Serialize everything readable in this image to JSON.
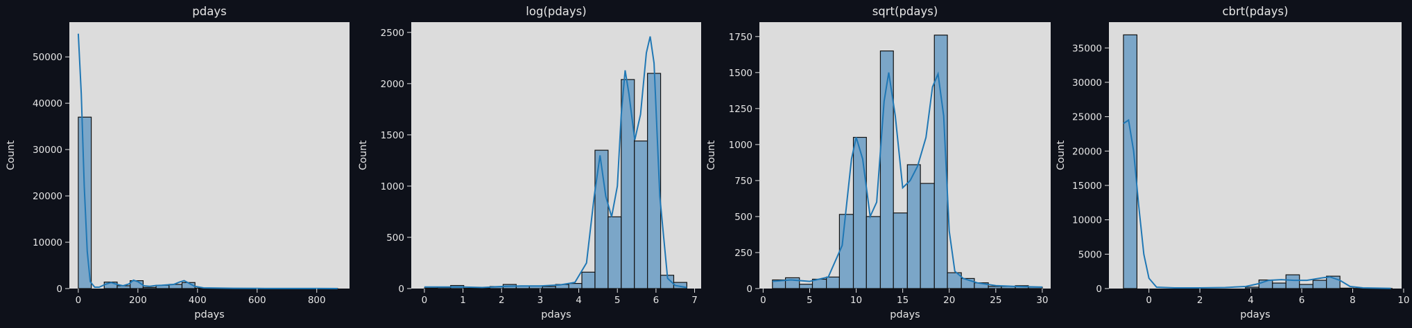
{
  "colors": {
    "background": "#0e111a",
    "axes_face": "#dcdcdc",
    "text": "#e6e6e6",
    "bar_fill": "#7ba6c8",
    "bar_edge": "#111111",
    "kde_line": "#1f77b4"
  },
  "chart_data": [
    {
      "type": "bar",
      "title": "pdays",
      "xlabel": "pdays",
      "ylabel": "Count",
      "xlim": [
        -30,
        910
      ],
      "ylim": [
        0,
        57500
      ],
      "xticks": [
        0,
        200,
        400,
        600,
        800
      ],
      "yticks": [
        0,
        10000,
        20000,
        30000,
        40000,
        50000
      ],
      "bins": [
        {
          "x0": 0,
          "x1": 43.5,
          "count": 37000
        },
        {
          "x0": 87,
          "x1": 130.5,
          "count": 1400
        },
        {
          "x0": 130.5,
          "x1": 174,
          "count": 600
        },
        {
          "x0": 174,
          "x1": 217.5,
          "count": 1700
        },
        {
          "x0": 217.5,
          "x1": 261,
          "count": 250
        },
        {
          "x0": 261,
          "x1": 304.5,
          "count": 700
        },
        {
          "x0": 304.5,
          "x1": 348,
          "count": 900
        },
        {
          "x0": 348,
          "x1": 391.5,
          "count": 1300
        },
        {
          "x0": 391.5,
          "x1": 435,
          "count": 100
        },
        {
          "x0": 435,
          "x1": 478.5,
          "count": 20
        },
        {
          "x0": 478.5,
          "x1": 522,
          "count": 30
        },
        {
          "x0": 522,
          "x1": 565.5,
          "count": 40
        },
        {
          "x0": 565.5,
          "x1": 609,
          "count": 20
        },
        {
          "x0": 609,
          "x1": 652.5,
          "count": 10
        },
        {
          "x0": 652.5,
          "x1": 696,
          "count": 10
        },
        {
          "x0": 696,
          "x1": 739.5,
          "count": 10
        },
        {
          "x0": 739.5,
          "x1": 783,
          "count": 10
        },
        {
          "x0": 783,
          "x1": 826.5,
          "count": 10
        },
        {
          "x0": 826.5,
          "x1": 870,
          "count": 10
        }
      ],
      "kde": [
        [
          0,
          55000
        ],
        [
          10,
          42000
        ],
        [
          20,
          22000
        ],
        [
          30,
          8000
        ],
        [
          40,
          1500
        ],
        [
          55,
          300
        ],
        [
          70,
          300
        ],
        [
          90,
          900
        ],
        [
          110,
          1300
        ],
        [
          130,
          900
        ],
        [
          150,
          600
        ],
        [
          170,
          1000
        ],
        [
          185,
          1800
        ],
        [
          200,
          1500
        ],
        [
          220,
          600
        ],
        [
          240,
          500
        ],
        [
          260,
          650
        ],
        [
          280,
          700
        ],
        [
          300,
          800
        ],
        [
          320,
          900
        ],
        [
          340,
          1400
        ],
        [
          355,
          1700
        ],
        [
          370,
          1200
        ],
        [
          390,
          500
        ],
        [
          420,
          150
        ],
        [
          460,
          100
        ],
        [
          520,
          60
        ],
        [
          600,
          30
        ],
        [
          700,
          15
        ],
        [
          800,
          10
        ],
        [
          870,
          5
        ]
      ]
    },
    {
      "type": "bar",
      "title": "log(pdays)",
      "xlabel": "pdays",
      "ylabel": "Count",
      "xlim": [
        -0.34,
        7.17
      ],
      "ylim": [
        0,
        2600
      ],
      "xticks": [
        0,
        1,
        2,
        3,
        4,
        5,
        6,
        7
      ],
      "yticks": [
        0,
        500,
        1000,
        1500,
        2000,
        2500
      ],
      "bins": [
        {
          "x0": 0,
          "x1": 0.34,
          "count": 5
        },
        {
          "x0": 0.34,
          "x1": 0.68,
          "count": 10
        },
        {
          "x0": 0.68,
          "x1": 1.02,
          "count": 30
        },
        {
          "x0": 1.02,
          "x1": 1.36,
          "count": 3
        },
        {
          "x0": 1.36,
          "x1": 1.7,
          "count": 5
        },
        {
          "x0": 1.7,
          "x1": 2.04,
          "count": 20
        },
        {
          "x0": 2.04,
          "x1": 2.38,
          "count": 40
        },
        {
          "x0": 2.38,
          "x1": 2.72,
          "count": 25
        },
        {
          "x0": 2.72,
          "x1": 3.06,
          "count": 25
        },
        {
          "x0": 3.06,
          "x1": 3.4,
          "count": 20
        },
        {
          "x0": 3.4,
          "x1": 3.74,
          "count": 40
        },
        {
          "x0": 3.74,
          "x1": 4.08,
          "count": 50
        },
        {
          "x0": 4.08,
          "x1": 4.42,
          "count": 160
        },
        {
          "x0": 4.42,
          "x1": 4.76,
          "count": 1350
        },
        {
          "x0": 4.76,
          "x1": 5.1,
          "count": 700
        },
        {
          "x0": 5.1,
          "x1": 5.44,
          "count": 2040
        },
        {
          "x0": 5.44,
          "x1": 5.78,
          "count": 1440
        },
        {
          "x0": 5.78,
          "x1": 6.12,
          "count": 2100
        },
        {
          "x0": 6.12,
          "x1": 6.46,
          "count": 130
        },
        {
          "x0": 6.46,
          "x1": 6.8,
          "count": 60
        }
      ],
      "kde": [
        [
          0,
          15
        ],
        [
          0.5,
          15
        ],
        [
          1,
          15
        ],
        [
          1.5,
          10
        ],
        [
          2,
          20
        ],
        [
          2.5,
          25
        ],
        [
          3,
          25
        ],
        [
          3.5,
          35
        ],
        [
          3.9,
          60
        ],
        [
          4.2,
          250
        ],
        [
          4.4,
          900
        ],
        [
          4.55,
          1300
        ],
        [
          4.7,
          900
        ],
        [
          4.85,
          700
        ],
        [
          5.0,
          1000
        ],
        [
          5.1,
          1700
        ],
        [
          5.2,
          2130
        ],
        [
          5.3,
          1900
        ],
        [
          5.45,
          1450
        ],
        [
          5.6,
          1700
        ],
        [
          5.75,
          2300
        ],
        [
          5.85,
          2460
        ],
        [
          5.95,
          2200
        ],
        [
          6.1,
          900
        ],
        [
          6.3,
          100
        ],
        [
          6.5,
          30
        ],
        [
          6.8,
          10
        ]
      ]
    },
    {
      "type": "bar",
      "title": "sqrt(pdays)",
      "xlabel": "pdays",
      "ylabel": "Count",
      "xlim": [
        -0.4,
        30.9
      ],
      "ylim": [
        0,
        1850
      ],
      "xticks": [
        0,
        5,
        10,
        15,
        20,
        25,
        30
      ],
      "yticks": [
        0,
        250,
        500,
        750,
        1000,
        1250,
        1500,
        1750
      ],
      "bins": [
        {
          "x0": 1.0,
          "x1": 2.4,
          "count": 60
        },
        {
          "x0": 2.4,
          "x1": 3.9,
          "count": 75
        },
        {
          "x0": 3.9,
          "x1": 5.3,
          "count": 30
        },
        {
          "x0": 5.3,
          "x1": 6.8,
          "count": 65
        },
        {
          "x0": 6.8,
          "x1": 8.2,
          "count": 80
        },
        {
          "x0": 8.2,
          "x1": 9.7,
          "count": 515
        },
        {
          "x0": 9.7,
          "x1": 11.1,
          "count": 1050
        },
        {
          "x0": 11.1,
          "x1": 12.6,
          "count": 500
        },
        {
          "x0": 12.6,
          "x1": 14.0,
          "count": 1650
        },
        {
          "x0": 14.0,
          "x1": 15.5,
          "count": 525
        },
        {
          "x0": 15.5,
          "x1": 16.9,
          "count": 860
        },
        {
          "x0": 16.9,
          "x1": 18.4,
          "count": 730
        },
        {
          "x0": 18.4,
          "x1": 19.8,
          "count": 1760
        },
        {
          "x0": 19.8,
          "x1": 21.3,
          "count": 110
        },
        {
          "x0": 21.3,
          "x1": 22.7,
          "count": 70
        },
        {
          "x0": 22.7,
          "x1": 24.2,
          "count": 40
        },
        {
          "x0": 24.2,
          "x1": 25.6,
          "count": 15
        },
        {
          "x0": 25.6,
          "x1": 27.1,
          "count": 15
        },
        {
          "x0": 27.1,
          "x1": 28.5,
          "count": 20
        },
        {
          "x0": 28.5,
          "x1": 30.0,
          "count": 10
        }
      ],
      "kde": [
        [
          1,
          50
        ],
        [
          3,
          60
        ],
        [
          5,
          50
        ],
        [
          7,
          80
        ],
        [
          8.5,
          300
        ],
        [
          9.5,
          900
        ],
        [
          10,
          1050
        ],
        [
          10.7,
          900
        ],
        [
          11.5,
          500
        ],
        [
          12.2,
          600
        ],
        [
          13,
          1300
        ],
        [
          13.5,
          1500
        ],
        [
          14.2,
          1200
        ],
        [
          15,
          700
        ],
        [
          15.8,
          750
        ],
        [
          16.6,
          850
        ],
        [
          17.5,
          1050
        ],
        [
          18.2,
          1400
        ],
        [
          18.8,
          1490
        ],
        [
          19.4,
          1200
        ],
        [
          20,
          400
        ],
        [
          20.6,
          120
        ],
        [
          21.5,
          70
        ],
        [
          23,
          40
        ],
        [
          25,
          20
        ],
        [
          27,
          15
        ],
        [
          30,
          10
        ]
      ]
    },
    {
      "type": "bar",
      "title": "cbrt(pdays)",
      "xlabel": "pdays",
      "ylabel": "Count",
      "xlim": [
        -1.57,
        9.92
      ],
      "ylim": [
        0,
        38750
      ],
      "xticks": [
        0,
        2,
        4,
        6,
        8,
        10
      ],
      "yticks": [
        0,
        5000,
        10000,
        15000,
        20000,
        25000,
        30000,
        35000
      ],
      "bins": [
        {
          "x0": -1.0,
          "x1": -0.47,
          "count": 36900
        },
        {
          "x0": 3.79,
          "x1": 4.32,
          "count": 200
        },
        {
          "x0": 4.32,
          "x1": 4.85,
          "count": 1250
        },
        {
          "x0": 4.85,
          "x1": 5.38,
          "count": 800
        },
        {
          "x0": 5.38,
          "x1": 5.91,
          "count": 2000
        },
        {
          "x0": 5.91,
          "x1": 6.44,
          "count": 600
        },
        {
          "x0": 6.44,
          "x1": 6.97,
          "count": 1200
        },
        {
          "x0": 6.97,
          "x1": 7.5,
          "count": 1800
        },
        {
          "x0": 7.5,
          "x1": 8.03,
          "count": 60
        },
        {
          "x0": 8.03,
          "x1": 8.56,
          "count": 30
        },
        {
          "x0": 8.56,
          "x1": 9.09,
          "count": 20
        },
        {
          "x0": 9.09,
          "x1": 9.55,
          "count": 10
        }
      ],
      "kde": [
        [
          -1.0,
          24000
        ],
        [
          -0.8,
          24500
        ],
        [
          -0.6,
          20000
        ],
        [
          -0.4,
          12000
        ],
        [
          -0.2,
          5000
        ],
        [
          0,
          1500
        ],
        [
          0.3,
          200
        ],
        [
          1,
          100
        ],
        [
          2,
          100
        ],
        [
          3,
          150
        ],
        [
          3.8,
          300
        ],
        [
          4.3,
          700
        ],
        [
          4.7,
          1200
        ],
        [
          5.2,
          1300
        ],
        [
          5.7,
          1200
        ],
        [
          6.2,
          1200
        ],
        [
          6.7,
          1500
        ],
        [
          7.1,
          1700
        ],
        [
          7.5,
          1200
        ],
        [
          7.9,
          300
        ],
        [
          8.4,
          100
        ],
        [
          9.5,
          30
        ]
      ]
    }
  ]
}
